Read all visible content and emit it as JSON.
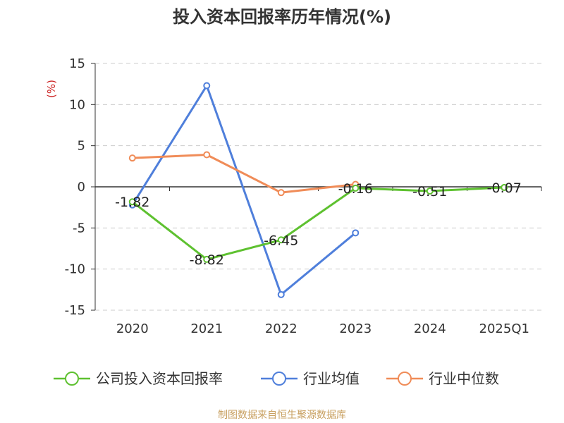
{
  "chart_data": {
    "type": "line",
    "title": "投入资本回报率历年情况(%)",
    "ylabel": "(%)",
    "categories": [
      "2020",
      "2021",
      "2022",
      "2023",
      "2024",
      "2025Q1"
    ],
    "ylim": [
      -15,
      15
    ],
    "yticks": [
      15,
      10,
      5,
      0,
      -5,
      -10,
      -15
    ],
    "grid": true,
    "legend_position": "bottom",
    "series": [
      {
        "name": "公司投入资本回报率",
        "color": "#5ec130",
        "values": [
          -1.82,
          -8.82,
          -6.45,
          -0.16,
          -0.51,
          -0.07
        ],
        "data_labels": [
          "-1.82",
          "-8.82",
          "-6.45",
          "-0.16",
          "-0.51",
          "-0.07"
        ]
      },
      {
        "name": "行业均值",
        "color": "#4f7fdb",
        "values": [
          -2.2,
          12.3,
          -13.1,
          -5.6,
          null,
          null
        ]
      },
      {
        "name": "行业中位数",
        "color": "#f08c58",
        "values": [
          3.5,
          3.9,
          -0.7,
          0.3,
          null,
          null
        ]
      }
    ]
  },
  "footer": {
    "source": "制图数据来自恒生聚源数据库"
  }
}
